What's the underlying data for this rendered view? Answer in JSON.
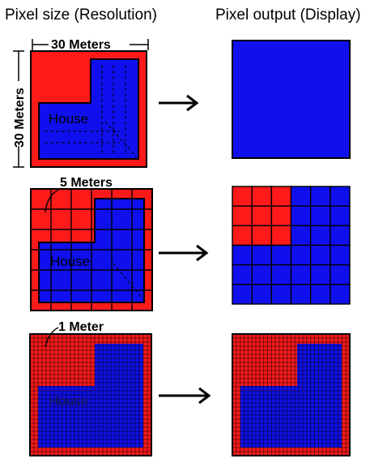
{
  "headers": {
    "resolution": "Pixel size (Resolution)",
    "display": "Pixel output (Display)"
  },
  "rows": [
    {
      "scale_label": "30 Meters",
      "side_label": "30 Meters",
      "house_label": "House",
      "pixel_size_m": 30,
      "grid_cells": 1
    },
    {
      "scale_label": "5 Meters",
      "house_label": "House",
      "pixel_size_m": 5,
      "grid_cells": 6
    },
    {
      "scale_label": "1 Meter",
      "house_label": "House",
      "pixel_size_m": 1,
      "grid_cells": 30
    }
  ],
  "output_fill": [
    [
      [
        1
      ]
    ],
    [
      [
        0,
        0,
        0,
        1,
        1,
        1
      ],
      [
        0,
        0,
        0,
        1,
        1,
        1
      ],
      [
        0,
        0,
        0,
        1,
        1,
        1
      ],
      [
        1,
        1,
        1,
        1,
        1,
        1
      ],
      [
        1,
        1,
        1,
        1,
        1,
        1
      ],
      [
        1,
        1,
        1,
        1,
        1,
        1
      ]
    ],
    "fine-grid"
  ],
  "colors": {
    "red": "#ff1a1a",
    "blue": "#1010ee",
    "outline": "#000000",
    "grid_dark": "#000000"
  }
}
